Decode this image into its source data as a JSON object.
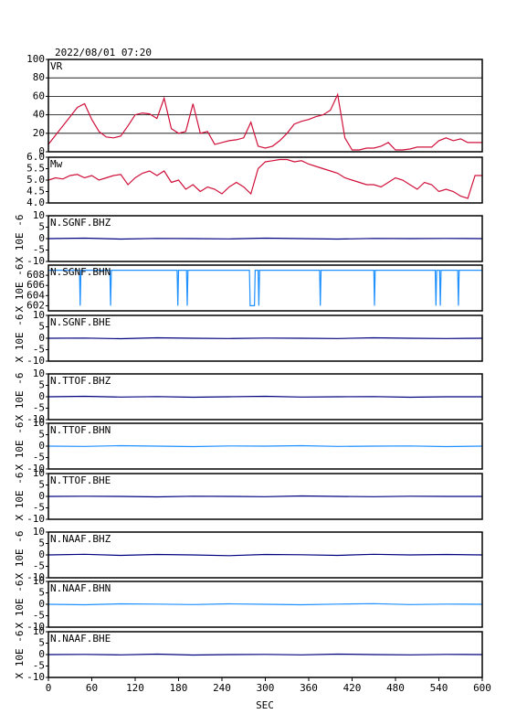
{
  "chart_data": {
    "type": "multi",
    "title": "2022/08/01 07:20",
    "xlabel": "SEC",
    "xlim": [
      0,
      600
    ],
    "xticks": [
      0,
      60,
      120,
      180,
      240,
      300,
      360,
      420,
      480,
      540,
      600
    ],
    "panels": [
      {
        "type": "line",
        "ylim": [
          0,
          100
        ],
        "yticks": [
          0,
          20,
          40,
          60,
          80,
          100
        ],
        "grid": true,
        "x": [
          0,
          10,
          20,
          30,
          40,
          50,
          60,
          70,
          80,
          90,
          100,
          110,
          120,
          130,
          140,
          150,
          160,
          170,
          180,
          190,
          200,
          210,
          220,
          230,
          240,
          250,
          260,
          270,
          280,
          290,
          300,
          310,
          320,
          330,
          340,
          350,
          360,
          370,
          380,
          390,
          400,
          410,
          420,
          430,
          440,
          450,
          460,
          470,
          480,
          490,
          500,
          510,
          520,
          530,
          540,
          550,
          560,
          570,
          580,
          590,
          600
        ],
        "series": [
          {
            "name": "VR",
            "color": "#d0103a",
            "values": [
              8,
              18,
              28,
              38,
              48,
              52,
              35,
              22,
              16,
              15,
              17,
              28,
              40,
              42,
              41,
              36,
              58,
              25,
              20,
              22,
              52,
              20,
              22,
              8,
              10,
              12,
              13,
              15,
              32,
              6,
              4,
              6,
              12,
              20,
              30,
              33,
              35,
              38,
              40,
              45,
              62,
              15,
              2,
              2,
              4,
              4,
              6,
              10,
              2,
              2,
              3,
              5,
              5,
              5,
              12,
              15,
              12,
              14,
              10,
              10,
              10
            ]
          }
        ]
      },
      {
        "type": "line",
        "ylim": [
          4,
          6
        ],
        "yticks": [
          {
            "value": 4,
            "label": "4.0"
          },
          4.5,
          {
            "value": 5,
            "label": "5.0"
          },
          5.5,
          {
            "value": 6,
            "label": "6.0"
          }
        ],
        "grid": false,
        "x": [
          0,
          10,
          20,
          30,
          40,
          50,
          60,
          70,
          80,
          90,
          100,
          110,
          120,
          130,
          140,
          150,
          160,
          170,
          180,
          190,
          200,
          210,
          220,
          230,
          240,
          250,
          260,
          270,
          280,
          290,
          300,
          310,
          320,
          330,
          340,
          350,
          360,
          370,
          380,
          390,
          400,
          410,
          420,
          430,
          440,
          450,
          460,
          470,
          480,
          490,
          500,
          510,
          520,
          530,
          540,
          550,
          560,
          570,
          580,
          590,
          600
        ],
        "series": [
          {
            "name": "Mw",
            "color": "#d0103a",
            "values": [
              5.0,
              5.1,
              5.05,
              5.2,
              5.25,
              5.1,
              5.2,
              5.0,
              5.1,
              5.2,
              5.25,
              4.8,
              5.1,
              5.3,
              5.4,
              5.2,
              5.4,
              4.9,
              5.0,
              4.6,
              4.8,
              4.5,
              4.7,
              4.6,
              4.4,
              4.7,
              4.9,
              4.7,
              4.4,
              5.5,
              5.8,
              5.85,
              5.9,
              5.9,
              5.8,
              5.85,
              5.7,
              5.6,
              5.5,
              5.4,
              5.3,
              5.1,
              5.0,
              4.9,
              4.8,
              4.8,
              4.7,
              4.9,
              5.1,
              5.0,
              4.8,
              4.6,
              4.9,
              4.8,
              4.5,
              4.6,
              4.5,
              4.3,
              4.2,
              5.2,
              5.2
            ]
          }
        ]
      },
      {
        "type": "line",
        "ylabel": "X 10E -6",
        "ylim": [
          -10,
          10
        ],
        "yticks": [
          -10,
          -5,
          0,
          5,
          10
        ],
        "grid": false,
        "x": [
          0,
          50,
          100,
          150,
          200,
          250,
          300,
          350,
          400,
          450,
          500,
          550,
          600
        ],
        "series": [
          {
            "name": "N.SGNF.BHZ",
            "color": "#000080",
            "values": [
              0,
              0.2,
              -0.2,
              0.1,
              0,
              -0.1,
              0.2,
              0,
              -0.2,
              0.1,
              0,
              0.1,
              0
            ]
          }
        ]
      },
      {
        "type": "line",
        "ylabel": "X 10E -6",
        "ylim": [
          601,
          610
        ],
        "yticks": [
          602,
          604,
          606,
          608
        ],
        "grid": false,
        "x": [
          0,
          43,
          44,
          45,
          85,
          86,
          87,
          178,
          179,
          180,
          191,
          192,
          193,
          278,
          279,
          285,
          286,
          290,
          291,
          292,
          375,
          376,
          377,
          450,
          451,
          452,
          535,
          536,
          537,
          541,
          542,
          543,
          566,
          567,
          568,
          600
        ],
        "series": [
          {
            "name": "N.SGNF.BHN",
            "color": "#1e90ff",
            "values": [
              609,
              609,
              602,
              609,
              609,
              602,
              609,
              609,
              602,
              609,
              609,
              602,
              609,
              609,
              602,
              602,
              609,
              609,
              602,
              609,
              609,
              602,
              609,
              609,
              602,
              609,
              609,
              602,
              609,
              609,
              602,
              609,
              609,
              602,
              609,
              609
            ]
          }
        ]
      },
      {
        "type": "line",
        "ylabel": "X 10E -6",
        "ylim": [
          -10,
          10
        ],
        "yticks": [
          -10,
          -5,
          0,
          5,
          10
        ],
        "grid": false,
        "x": [
          0,
          50,
          100,
          150,
          200,
          250,
          300,
          350,
          400,
          450,
          500,
          550,
          600
        ],
        "series": [
          {
            "name": "N.SGNF.BHE",
            "color": "#000080",
            "values": [
              0,
              0.1,
              -0.2,
              0.2,
              0,
              -0.1,
              0.1,
              0,
              -0.1,
              0.2,
              0,
              -0.1,
              0
            ]
          }
        ]
      },
      {
        "type": "line",
        "ylabel": "X 10E -6",
        "ylim": [
          -10,
          10
        ],
        "yticks": [
          -10,
          -5,
          0,
          5,
          10
        ],
        "grid": false,
        "x": [
          0,
          50,
          100,
          150,
          200,
          250,
          300,
          350,
          400,
          450,
          500,
          550,
          600
        ],
        "series": [
          {
            "name": "N.TTOF.BHZ",
            "color": "#000080",
            "values": [
              0,
              0.2,
              -0.1,
              0.1,
              -0.2,
              0,
              0.2,
              -0.1,
              0,
              0.1,
              -0.2,
              0,
              0
            ]
          }
        ]
      },
      {
        "type": "line",
        "ylabel": "X 10E -6",
        "ylim": [
          -10,
          10
        ],
        "yticks": [
          -10,
          -5,
          0,
          5,
          10
        ],
        "grid": false,
        "x": [
          0,
          50,
          100,
          150,
          200,
          250,
          300,
          350,
          400,
          450,
          500,
          550,
          600
        ],
        "series": [
          {
            "name": "N.TTOF.BHN",
            "color": "#1e90ff",
            "values": [
              0,
              -0.1,
              0.2,
              0,
              -0.2,
              0.1,
              0,
              0.2,
              -0.1,
              0,
              0.1,
              -0.2,
              0
            ]
          }
        ]
      },
      {
        "type": "line",
        "ylabel": "X 10E -6",
        "ylim": [
          -10,
          10
        ],
        "yticks": [
          -10,
          -5,
          0,
          5,
          10
        ],
        "grid": false,
        "x": [
          0,
          50,
          100,
          150,
          200,
          250,
          300,
          350,
          400,
          450,
          500,
          550,
          600
        ],
        "series": [
          {
            "name": "N.TTOF.BHE",
            "color": "#000080",
            "values": [
              0,
              0.1,
              0,
              -0.2,
              0.1,
              0,
              -0.1,
              0.2,
              0,
              -0.1,
              0.1,
              0,
              0
            ]
          }
        ]
      },
      {
        "type": "line",
        "ylabel": "X 10E -6",
        "ylim": [
          -10,
          10
        ],
        "yticks": [
          -10,
          -5,
          0,
          5,
          10
        ],
        "grid": false,
        "x": [
          0,
          50,
          100,
          150,
          200,
          250,
          300,
          350,
          400,
          450,
          500,
          550,
          600
        ],
        "series": [
          {
            "name": "N.NAAF.BHZ",
            "color": "#000080",
            "values": [
              0,
              0.3,
              -0.2,
              0.2,
              0,
              -0.3,
              0.2,
              0.1,
              -0.2,
              0.3,
              0,
              0.2,
              0
            ]
          }
        ]
      },
      {
        "type": "line",
        "ylabel": "X 10E -6",
        "ylim": [
          -10,
          10
        ],
        "yticks": [
          -10,
          -5,
          0,
          5,
          10
        ],
        "grid": false,
        "x": [
          0,
          50,
          100,
          150,
          200,
          250,
          300,
          350,
          400,
          450,
          500,
          550,
          600
        ],
        "series": [
          {
            "name": "N.NAAF.BHN",
            "color": "#1e90ff",
            "values": [
              0,
              -0.2,
              0.2,
              0.1,
              -0.1,
              0.2,
              0,
              -0.2,
              0.1,
              0.3,
              -0.1,
              0.1,
              0
            ]
          }
        ]
      },
      {
        "type": "line",
        "ylabel": "X 10E -6",
        "ylim": [
          -10,
          10
        ],
        "yticks": [
          -10,
          -5,
          0,
          5,
          10
        ],
        "grid": false,
        "x": [
          0,
          50,
          100,
          150,
          200,
          250,
          300,
          350,
          400,
          450,
          500,
          550,
          600
        ],
        "series": [
          {
            "name": "N.NAAF.BHE",
            "color": "#000080",
            "values": [
              0,
              0.1,
              -0.1,
              0.2,
              -0.2,
              0,
              0.1,
              -0.1,
              0.2,
              0,
              -0.1,
              0.1,
              0
            ]
          }
        ]
      }
    ]
  }
}
